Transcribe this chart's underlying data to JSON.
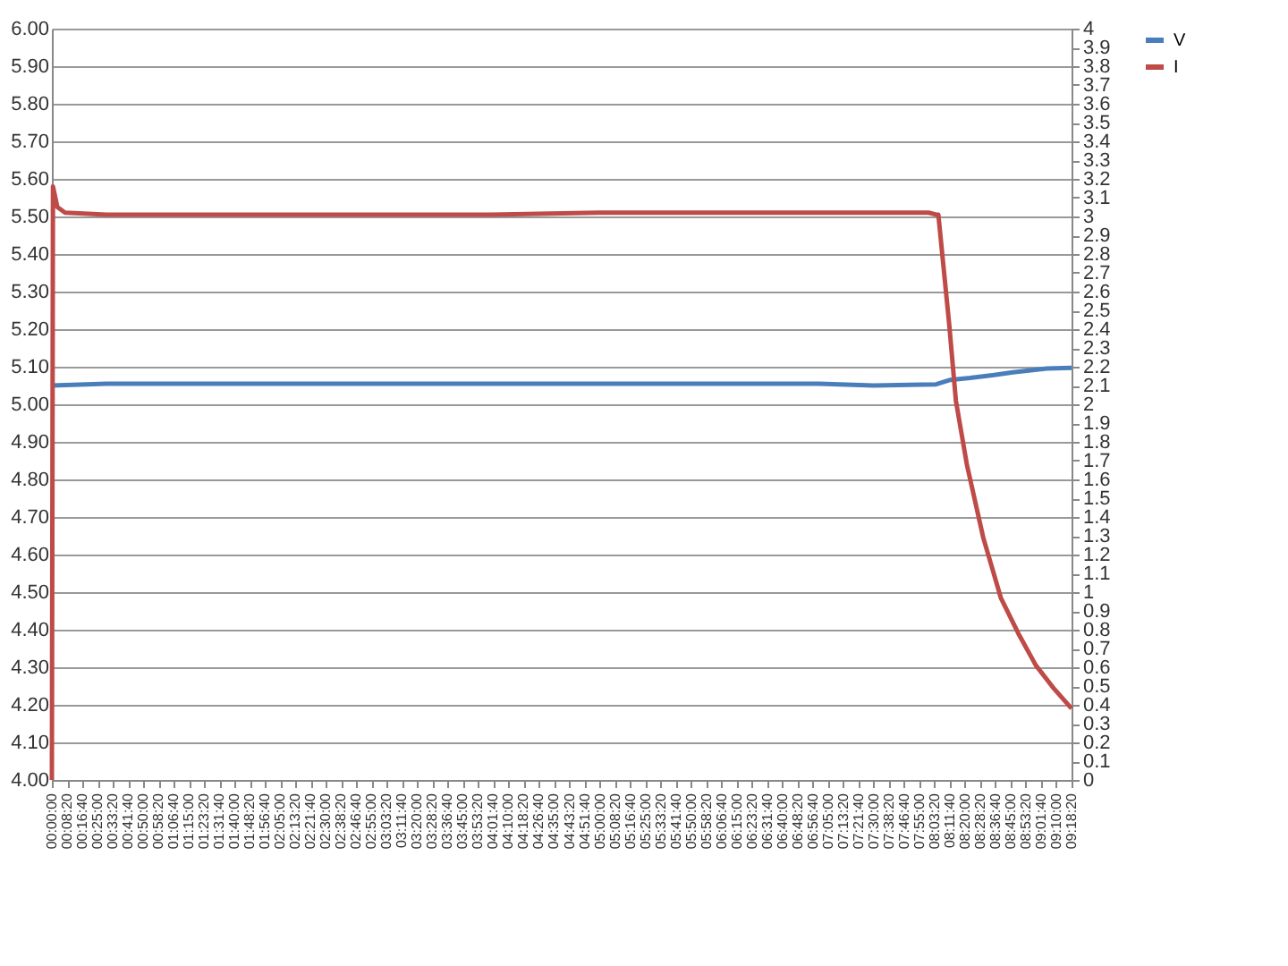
{
  "chart_data": {
    "type": "line",
    "xlim": [
      0,
      9.3056
    ],
    "xticks": [
      {
        "value": 0,
        "label": "00:00:00"
      },
      {
        "value": 0.1389,
        "label": "00:08:20"
      },
      {
        "value": 0.2778,
        "label": "00:16:40"
      },
      {
        "value": 0.4167,
        "label": "00:25:00"
      },
      {
        "value": 0.5556,
        "label": "00:33:20"
      },
      {
        "value": 0.6944,
        "label": "00:41:40"
      },
      {
        "value": 0.8333,
        "label": "00:50:00"
      },
      {
        "value": 0.9722,
        "label": "00:58:20"
      },
      {
        "value": 1.1111,
        "label": "01:06:40"
      },
      {
        "value": 1.25,
        "label": "01:15:00"
      },
      {
        "value": 1.3889,
        "label": "01:23:20"
      },
      {
        "value": 1.5278,
        "label": "01:31:40"
      },
      {
        "value": 1.6667,
        "label": "01:40:00"
      },
      {
        "value": 1.8056,
        "label": "01:48:20"
      },
      {
        "value": 1.9444,
        "label": "01:56:40"
      },
      {
        "value": 2.0833,
        "label": "02:05:00"
      },
      {
        "value": 2.2222,
        "label": "02:13:20"
      },
      {
        "value": 2.3611,
        "label": "02:21:40"
      },
      {
        "value": 2.5,
        "label": "02:30:00"
      },
      {
        "value": 2.6389,
        "label": "02:38:20"
      },
      {
        "value": 2.7778,
        "label": "02:46:40"
      },
      {
        "value": 2.9167,
        "label": "02:55:00"
      },
      {
        "value": 3.0556,
        "label": "03:03:20"
      },
      {
        "value": 3.1944,
        "label": "03:11:40"
      },
      {
        "value": 3.3333,
        "label": "03:20:00"
      },
      {
        "value": 3.4722,
        "label": "03:28:20"
      },
      {
        "value": 3.6111,
        "label": "03:36:40"
      },
      {
        "value": 3.75,
        "label": "03:45:00"
      },
      {
        "value": 3.8889,
        "label": "03:53:20"
      },
      {
        "value": 4.0278,
        "label": "04:01:40"
      },
      {
        "value": 4.1667,
        "label": "04:10:00"
      },
      {
        "value": 4.3056,
        "label": "04:18:20"
      },
      {
        "value": 4.4444,
        "label": "04:26:40"
      },
      {
        "value": 4.5833,
        "label": "04:35:00"
      },
      {
        "value": 4.7222,
        "label": "04:43:20"
      },
      {
        "value": 4.8611,
        "label": "04:51:40"
      },
      {
        "value": 5,
        "label": "05:00:00"
      },
      {
        "value": 5.1389,
        "label": "05:08:20"
      },
      {
        "value": 5.2778,
        "label": "05:16:40"
      },
      {
        "value": 5.4167,
        "label": "05:25:00"
      },
      {
        "value": 5.5556,
        "label": "05:33:20"
      },
      {
        "value": 5.6944,
        "label": "05:41:40"
      },
      {
        "value": 5.8333,
        "label": "05:50:00"
      },
      {
        "value": 5.9722,
        "label": "05:58:20"
      },
      {
        "value": 6.1111,
        "label": "06:06:40"
      },
      {
        "value": 6.25,
        "label": "06:15:00"
      },
      {
        "value": 6.3889,
        "label": "06:23:20"
      },
      {
        "value": 6.5278,
        "label": "06:31:40"
      },
      {
        "value": 6.6667,
        "label": "06:40:00"
      },
      {
        "value": 6.8056,
        "label": "06:48:20"
      },
      {
        "value": 6.9444,
        "label": "06:56:40"
      },
      {
        "value": 7.0833,
        "label": "07:05:00"
      },
      {
        "value": 7.2222,
        "label": "07:13:20"
      },
      {
        "value": 7.3611,
        "label": "07:21:40"
      },
      {
        "value": 7.5,
        "label": "07:30:00"
      },
      {
        "value": 7.6389,
        "label": "07:38:20"
      },
      {
        "value": 7.7778,
        "label": "07:46:40"
      },
      {
        "value": 7.9167,
        "label": "07:55:00"
      },
      {
        "value": 8.0556,
        "label": "08:03:20"
      },
      {
        "value": 8.1944,
        "label": "08:11:40"
      },
      {
        "value": 8.3333,
        "label": "08:20:00"
      },
      {
        "value": 8.4722,
        "label": "08:28:20"
      },
      {
        "value": 8.6111,
        "label": "08:36:40"
      },
      {
        "value": 8.75,
        "label": "08:45:00"
      },
      {
        "value": 8.8889,
        "label": "08:53:20"
      },
      {
        "value": 9.0278,
        "label": "09:01:40"
      },
      {
        "value": 9.1667,
        "label": "09:10:00"
      },
      {
        "value": 9.3056,
        "label": "09:18:20"
      }
    ],
    "ylim": [
      4,
      6
    ],
    "yticks": [
      {
        "value": 4,
        "label": "4.00"
      },
      {
        "value": 4.1,
        "label": "4.10"
      },
      {
        "value": 4.2,
        "label": "4.20"
      },
      {
        "value": 4.3,
        "label": "4.30"
      },
      {
        "value": 4.4,
        "label": "4.40"
      },
      {
        "value": 4.5,
        "label": "4.50"
      },
      {
        "value": 4.6,
        "label": "4.60"
      },
      {
        "value": 4.7,
        "label": "4.70"
      },
      {
        "value": 4.8,
        "label": "4.80"
      },
      {
        "value": 4.9,
        "label": "4.90"
      },
      {
        "value": 5,
        "label": "5.00"
      },
      {
        "value": 5.1,
        "label": "5.10"
      },
      {
        "value": 5.2,
        "label": "5.20"
      },
      {
        "value": 5.3,
        "label": "5.30"
      },
      {
        "value": 5.4,
        "label": "5.40"
      },
      {
        "value": 5.5,
        "label": "5.50"
      },
      {
        "value": 5.6,
        "label": "5.60"
      },
      {
        "value": 5.7,
        "label": "5.70"
      },
      {
        "value": 5.8,
        "label": "5.80"
      },
      {
        "value": 5.9,
        "label": "5.90"
      },
      {
        "value": 6,
        "label": "6.00"
      }
    ],
    "y2lim": [
      0,
      4
    ],
    "y2ticks": [
      0,
      0.1,
      0.2,
      0.3,
      0.4,
      0.5,
      0.6,
      0.7,
      0.8,
      0.9,
      1,
      1.1,
      1.2,
      1.3,
      1.4,
      1.5,
      1.6,
      1.7,
      1.8,
      1.9,
      2,
      2.1,
      2.2,
      2.3,
      2.4,
      2.5,
      2.6,
      2.7,
      2.8,
      2.9,
      3,
      3.1,
      3.2,
      3.3,
      3.4,
      3.5,
      3.6,
      3.7,
      3.8,
      3.9,
      4
    ],
    "grid": "y",
    "legend": "right",
    "series": [
      {
        "name": "V",
        "color": "#4a7ebb",
        "x": [
          0,
          0.5,
          1,
          2,
          3,
          4,
          5,
          6,
          7,
          7.5,
          8.07,
          8.2,
          8.38,
          8.6,
          8.77,
          9.08,
          9.3056
        ],
        "values": [
          5.05,
          5.055,
          5.055,
          5.055,
          5.055,
          5.055,
          5.055,
          5.055,
          5.055,
          5.05,
          5.053,
          5.065,
          5.07,
          5.078,
          5.085,
          5.095,
          5.097
        ]
      },
      {
        "name": "I",
        "color": "#be4b48",
        "axis": "y2",
        "x": [
          0,
          0.01,
          0.05,
          0.12,
          0.5,
          4,
          5,
          8.0,
          8.07,
          8.09,
          8.19,
          8.25,
          8.35,
          8.5,
          8.66,
          8.82,
          8.98,
          9.14,
          9.3056
        ],
        "values": [
          0,
          3.16,
          3.05,
          3.02,
          3.01,
          3.01,
          3.02,
          3.02,
          3.01,
          3.01,
          2.42,
          2.02,
          1.68,
          1.29,
          0.97,
          0.78,
          0.61,
          0.49,
          0.38
        ]
      }
    ]
  }
}
